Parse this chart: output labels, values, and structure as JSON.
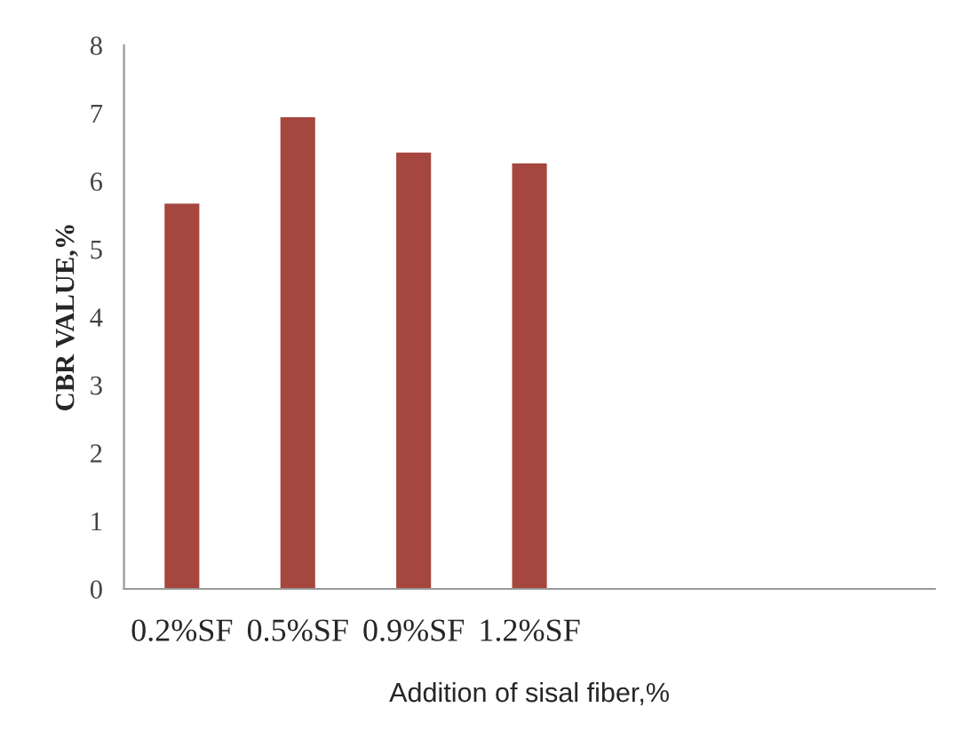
{
  "chart_data": {
    "type": "bar",
    "categories": [
      "0.2%SF",
      "0.5%SF",
      "0.9%SF",
      "1.2%SF",
      null,
      null,
      null
    ],
    "values": [
      5.67,
      6.94,
      6.42,
      6.26,
      null,
      null,
      null
    ],
    "color": "#a5463f",
    "xlabel": "Addition of sisal fiber,%",
    "ylabel": "CBR VALUE,%",
    "ylim": [
      0,
      8
    ],
    "yticks": [
      0,
      1,
      2,
      3,
      4,
      5,
      6,
      7,
      8
    ],
    "grid": false,
    "legend": false
  }
}
